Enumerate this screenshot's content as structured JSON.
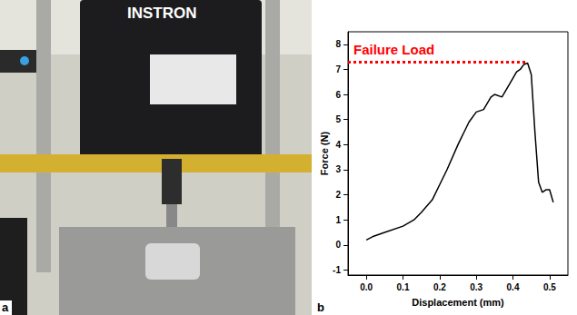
{
  "figure": {
    "panel_labels": [
      "a",
      "b"
    ]
  },
  "photo": {
    "text": "INSTRON"
  },
  "chart_data": {
    "type": "line",
    "xlabel": "Displacement (mm)",
    "ylabel": "Force (N)",
    "color": "#000000",
    "x": [
      0.0,
      0.02,
      0.05,
      0.1,
      0.13,
      0.15,
      0.18,
      0.2,
      0.22,
      0.25,
      0.28,
      0.3,
      0.32,
      0.34,
      0.35,
      0.37,
      0.39,
      0.41,
      0.42,
      0.43,
      0.44,
      0.45,
      0.46,
      0.47,
      0.48,
      0.49,
      0.5,
      0.51
    ],
    "values": [
      0.2,
      0.35,
      0.5,
      0.75,
      1.0,
      1.3,
      1.8,
      2.4,
      3.0,
      4.0,
      4.9,
      5.3,
      5.4,
      5.9,
      6.0,
      5.9,
      6.4,
      6.9,
      7.0,
      7.2,
      7.25,
      6.8,
      4.5,
      2.5,
      2.1,
      2.2,
      2.2,
      1.7
    ],
    "xlim": [
      -0.05,
      0.55
    ],
    "ylim": [
      -1.2,
      8.5
    ],
    "xticks": [
      {
        "value": 0,
        "label": "0.0"
      },
      0.1,
      0.2,
      0.3,
      0.4,
      0.5
    ],
    "yticks": [
      -1,
      0,
      1,
      2,
      3,
      4,
      5,
      6,
      7,
      8
    ],
    "annotations": [
      {
        "text": "Failure Load",
        "y": 7.3,
        "color": "#ff0000",
        "line_style": "dotted"
      }
    ],
    "grid": false
  }
}
